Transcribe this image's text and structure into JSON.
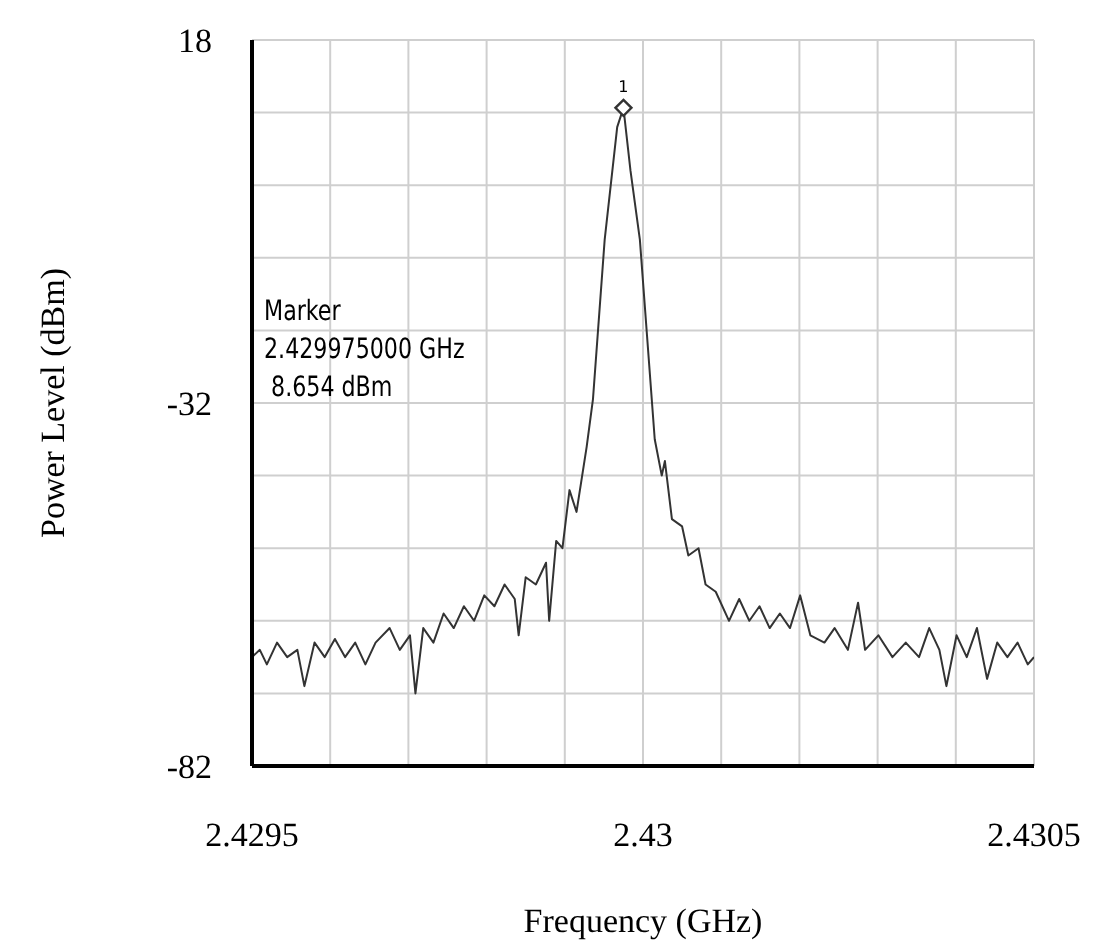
{
  "chart_data": {
    "type": "line",
    "xlabel": "Frequency (GHz)",
    "ylabel": "Power Level (dBm)",
    "xlim": [
      2.4295,
      2.4305
    ],
    "xticks": [
      2.4295,
      {
        "value": 2.4296,
        "label": null
      },
      {
        "value": 2.4297,
        "label": null
      },
      {
        "value": 2.4298,
        "label": null
      },
      {
        "value": 2.4299,
        "label": null
      },
      2.43,
      {
        "value": 2.4301,
        "label": null
      },
      {
        "value": 2.4302,
        "label": null
      },
      {
        "value": 2.4303,
        "label": null
      },
      {
        "value": 2.4304,
        "label": null
      },
      2.4305
    ],
    "ylim": [
      -82,
      18
    ],
    "yticks": [
      -82,
      {
        "value": -72,
        "label": null
      },
      {
        "value": -62,
        "label": null
      },
      {
        "value": -52,
        "label": null
      },
      {
        "value": -42,
        "label": null
      },
      -32,
      {
        "value": -22,
        "label": null
      },
      {
        "value": -12,
        "label": null
      },
      {
        "value": -2,
        "label": null
      },
      {
        "value": 8,
        "label": null
      },
      18
    ],
    "grid": true,
    "marker": "none",
    "line_style": "solid",
    "annotations": [
      "Marker\n2.429975000 GHz\n 8.654 dBm",
      {
        "text": "1",
        "x": 2.429975,
        "y": 8.654
      }
    ],
    "series": [
      {
        "color": "#333333",
        "x": [
          2.4295,
          2.42951,
          2.429519,
          2.429532,
          2.429545,
          2.429558,
          2.429567,
          2.42958,
          2.429593,
          2.429606,
          2.429619,
          2.429632,
          2.429645,
          2.429658,
          2.429676,
          2.429689,
          2.429702,
          2.429709,
          2.429719,
          2.429732,
          2.429745,
          2.429758,
          2.429771,
          2.429784,
          2.429797,
          2.42981,
          2.429823,
          2.429836,
          2.429841,
          2.42985,
          2.429863,
          2.429876,
          2.42988,
          2.429889,
          2.429897,
          2.429906,
          2.429915,
          2.429928,
          2.429936,
          2.429951,
          2.429967,
          2.429975,
          2.429984,
          2.429996,
          2.430015,
          2.430024,
          2.430028,
          2.430037,
          2.43005,
          2.430058,
          2.430071,
          2.43008,
          2.430093,
          2.43011,
          2.430123,
          2.430136,
          2.430149,
          2.430162,
          2.430175,
          2.430188,
          2.430201,
          2.430214,
          2.430232,
          2.430245,
          2.430262,
          2.430275,
          2.430284,
          2.430301,
          2.430319,
          2.430336,
          2.430353,
          2.430366,
          2.430379,
          2.430388,
          2.430401,
          2.430414,
          2.430427,
          2.43044,
          2.430453,
          2.430466,
          2.430479,
          2.430492,
          2.4305
        ],
        "values": [
          -67,
          -66,
          -68,
          -65,
          -67,
          -66,
          -71,
          -65,
          -67,
          -64.5,
          -67,
          -65,
          -68,
          -65,
          -63,
          -66,
          -64,
          -72,
          -63,
          -65,
          -61,
          -63,
          -60,
          -62,
          -58.5,
          -60,
          -57,
          -59,
          -64,
          -56,
          -57,
          -54,
          -62,
          -51,
          -52,
          -44,
          -47,
          -38,
          -31.5,
          -9.5,
          6,
          8.654,
          0,
          -9.5,
          -37,
          -42,
          -40,
          -48,
          -49,
          -53,
          -52,
          -57,
          -58,
          -62,
          -59,
          -62,
          -60,
          -63,
          -61,
          -63,
          -58.5,
          -64,
          -65,
          -63,
          -66,
          -59.5,
          -66,
          -64,
          -67,
          -65,
          -67,
          -63,
          -66,
          -71,
          -64,
          -67,
          -63,
          -70,
          -65,
          -67,
          -65,
          -68,
          -67
        ]
      },
      {
        "type": "scatter",
        "marker": "diamond",
        "color": "#333333",
        "x": [
          2.429975
        ],
        "values": [
          8.654
        ]
      }
    ]
  }
}
